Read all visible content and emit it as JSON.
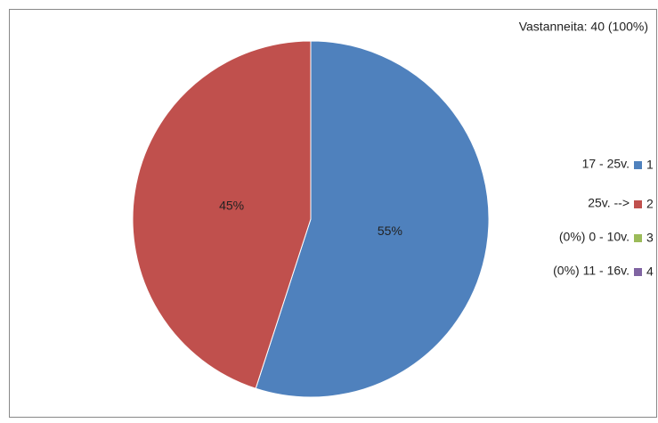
{
  "chart_data": {
    "type": "pie",
    "annotation": "Vastanneita: 40 (100%)",
    "categories": [
      "17 - 25v.",
      "25v. -->",
      "(0%) 0 - 10v.",
      "(0%) 11 - 16v."
    ],
    "legend_keys": [
      "1",
      "2",
      "3",
      "4"
    ],
    "values": [
      55,
      45,
      0,
      0
    ],
    "value_labels": [
      "55%",
      "45%",
      null,
      null
    ],
    "colors": [
      "#4f81bd",
      "#c0504d",
      "#9bbb59",
      "#8064a2"
    ],
    "legend": "right"
  }
}
